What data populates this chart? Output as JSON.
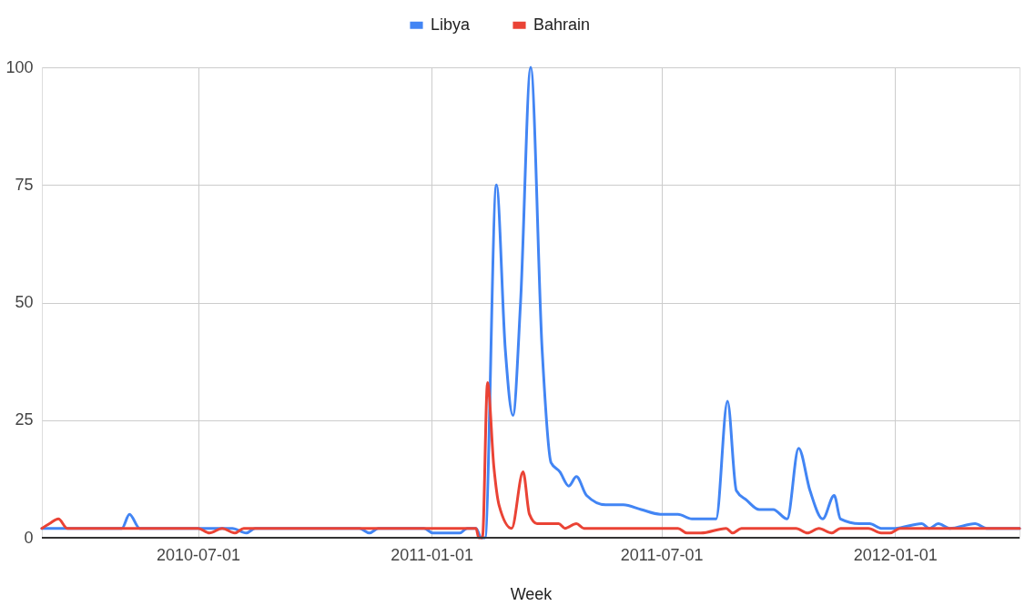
{
  "chart_data": {
    "type": "line",
    "xlabel": "Week",
    "legend": "top",
    "grid": true,
    "marker": "none",
    "line_style": "solid",
    "xlim": [
      "2010-02-28",
      "2012-04-08"
    ],
    "xticks": [
      "2010-07-01",
      "2011-01-01",
      "2011-07-01",
      "2012-01-01"
    ],
    "ylim": [
      0,
      100
    ],
    "yticks": [
      0,
      25,
      50,
      75,
      100
    ],
    "series": [
      {
        "name": "Libya",
        "color": "#4285f4",
        "x": [
          "2010-02-28",
          "2010-04-26",
          "2010-05-02",
          "2010-05-08",
          "2010-05-16",
          "2010-07-01",
          "2010-07-28",
          "2010-08-08",
          "2010-08-15",
          "2010-11-05",
          "2010-11-13",
          "2010-11-20",
          "2010-12-26",
          "2011-01-02",
          "2011-01-23",
          "2011-01-29",
          "2011-02-05",
          "2011-02-09",
          "2011-02-12",
          "2011-02-21",
          "2011-02-28",
          "2011-03-06",
          "2011-03-12",
          "2011-03-20",
          "2011-03-29",
          "2011-04-05",
          "2011-04-12",
          "2011-04-19",
          "2011-04-25",
          "2011-05-03",
          "2011-05-18",
          "2011-06-01",
          "2011-06-15",
          "2011-06-30",
          "2011-07-14",
          "2011-07-25",
          "2011-08-08",
          "2011-08-13",
          "2011-08-22",
          "2011-08-29",
          "2011-09-06",
          "2011-09-16",
          "2011-09-27",
          "2011-10-08",
          "2011-10-17",
          "2011-10-26",
          "2011-11-05",
          "2011-11-14",
          "2011-11-19",
          "2011-12-04",
          "2011-12-12",
          "2011-12-21",
          "2012-01-01",
          "2012-01-22",
          "2012-01-28",
          "2012-02-04",
          "2012-02-13",
          "2012-03-04",
          "2012-03-13",
          "2012-04-08"
        ],
        "values": [
          2,
          2,
          2,
          5,
          2,
          2,
          2,
          1,
          2,
          2,
          1,
          2,
          2,
          1,
          1,
          2,
          2,
          0,
          0,
          75,
          40,
          26,
          50,
          100,
          40,
          16,
          14,
          11,
          13,
          9,
          7,
          7,
          6,
          5,
          5,
          4,
          4,
          4,
          29,
          10,
          8,
          6,
          6,
          4,
          19,
          10,
          4,
          9,
          4,
          3,
          3,
          2,
          2,
          3,
          2,
          3,
          2,
          3,
          2,
          2
        ]
      },
      {
        "name": "Bahrain",
        "color": "#ea4335",
        "x": [
          "2010-02-28",
          "2010-03-06",
          "2010-03-13",
          "2010-03-20",
          "2010-07-01",
          "2010-07-10",
          "2010-07-20",
          "2010-07-30",
          "2010-08-06",
          "2011-02-05",
          "2011-02-07",
          "2011-02-10",
          "2011-02-14",
          "2011-02-19",
          "2011-02-23",
          "2011-03-05",
          "2011-03-14",
          "2011-03-19",
          "2011-03-25",
          "2011-04-05",
          "2011-04-11",
          "2011-04-16",
          "2011-04-25",
          "2011-05-01",
          "2011-07-14",
          "2011-07-21",
          "2011-08-01",
          "2011-08-21",
          "2011-08-26",
          "2011-09-02",
          "2011-10-15",
          "2011-10-24",
          "2011-11-02",
          "2011-11-12",
          "2011-11-19",
          "2011-12-11",
          "2011-12-21",
          "2011-12-28",
          "2012-01-05",
          "2012-04-08"
        ],
        "values": [
          2,
          3,
          4,
          2,
          2,
          1,
          2,
          1,
          2,
          2,
          0,
          0,
          33,
          15,
          7,
          2,
          14,
          5,
          3,
          3,
          3,
          2,
          3,
          2,
          2,
          1,
          1,
          2,
          1,
          2,
          2,
          1,
          2,
          1,
          2,
          2,
          1,
          1,
          2,
          2
        ]
      }
    ]
  }
}
